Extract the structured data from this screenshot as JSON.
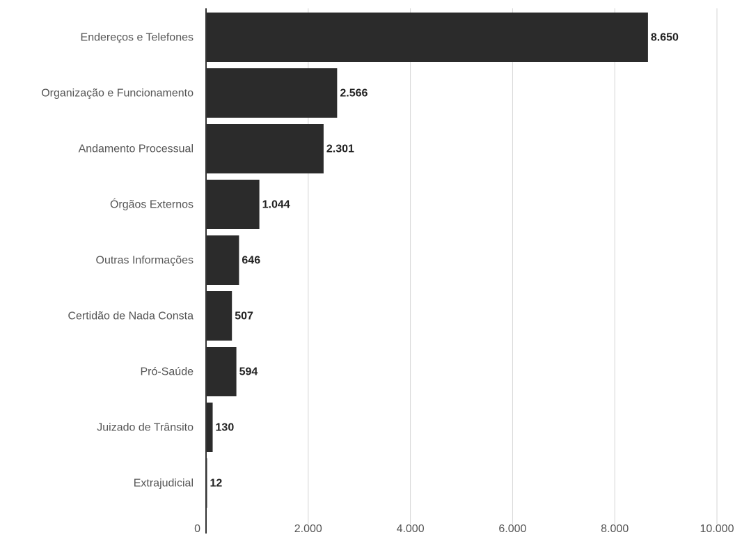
{
  "chart_data": {
    "type": "bar",
    "orientation": "horizontal",
    "categories": [
      "Endereços e Telefones",
      "Organização e Funcionamento",
      "Andamento Processual",
      "Órgãos Externos",
      "Outras Informações",
      "Certidão de Nada Consta",
      "Pró-Saúde",
      "Juizado de Trânsito",
      "Extrajudicial"
    ],
    "values": [
      8650,
      2566,
      2301,
      1044,
      646,
      507,
      594,
      130,
      12
    ],
    "value_labels": [
      "8.650",
      "2.566",
      "2.301",
      "1.044",
      "646",
      "507",
      "594",
      "130",
      "12"
    ],
    "xlim": [
      0,
      10000
    ],
    "x_ticks": [
      0,
      2000,
      4000,
      6000,
      8000,
      10000
    ],
    "x_tick_labels": [
      "0",
      "2.000",
      "4.000",
      "6.000",
      "8.000",
      "10.000"
    ],
    "title": "",
    "xlabel": "",
    "ylabel": "",
    "grid": "vertical",
    "legend": "none",
    "colors": {
      "bar": "#2b2b2b",
      "grid": "#d6d6d6",
      "axis": "#333333",
      "category_text": "#555555",
      "value_text": "#222222"
    }
  }
}
